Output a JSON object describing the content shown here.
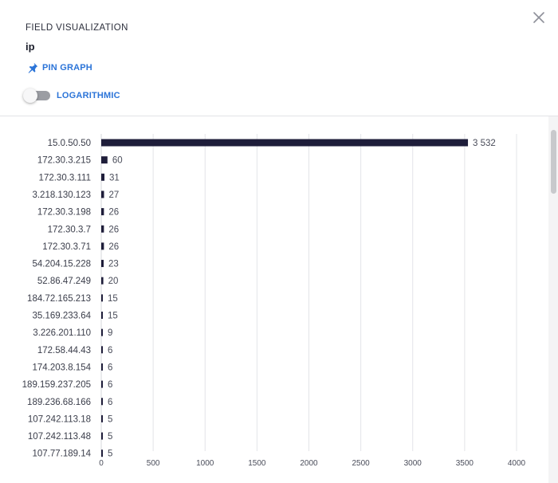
{
  "header": {
    "title": "FIELD VISUALIZATION",
    "field_name": "ip",
    "pin_graph_label": "PIN GRAPH",
    "logarithmic_label": "LOGARITHMIC",
    "logarithmic_enabled": false
  },
  "icons": {
    "close": "close-icon",
    "pin": "pin-icon"
  },
  "colors": {
    "bar": "#1e1d3a",
    "accent": "#2b74d8",
    "grid": "#e3e4e8"
  },
  "chart_data": {
    "type": "bar",
    "orientation": "horizontal",
    "categories": [
      "15.0.50.50",
      "172.30.3.215",
      "172.30.3.111",
      "3.218.130.123",
      "172.30.3.198",
      "172.30.3.7",
      "172.30.3.71",
      "54.204.15.228",
      "52.86.47.249",
      "184.72.165.213",
      "35.169.233.64",
      "3.226.201.110",
      "172.58.44.43",
      "174.203.8.154",
      "189.159.237.205",
      "189.236.68.166",
      "107.242.113.18",
      "107.242.113.48",
      "107.77.189.14"
    ],
    "values": [
      3532,
      60,
      31,
      27,
      26,
      26,
      26,
      23,
      20,
      15,
      15,
      9,
      6,
      6,
      6,
      6,
      5,
      5,
      5
    ],
    "value_labels": [
      "3 532",
      "60",
      "31",
      "27",
      "26",
      "26",
      "26",
      "23",
      "20",
      "15",
      "15",
      "9",
      "6",
      "6",
      "6",
      "6",
      "5",
      "5",
      "5"
    ],
    "xlim": [
      0,
      4000
    ],
    "xticks": [
      0,
      500,
      1000,
      1500,
      2000,
      2500,
      3000,
      3500,
      4000
    ],
    "grid": true,
    "log_scale": false
  }
}
